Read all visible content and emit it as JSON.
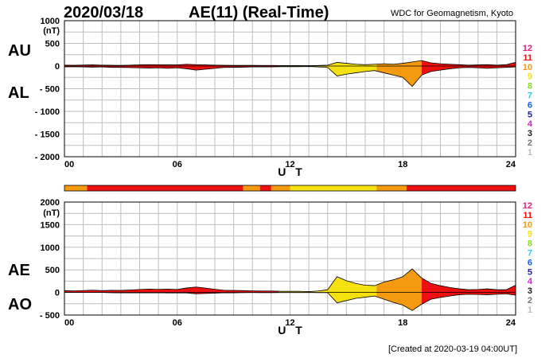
{
  "header": {
    "date": "2020/03/18",
    "title": "AE(11) (Real-Time)",
    "organization": "WDC for Geomagnetism, Kyoto"
  },
  "footer": {
    "created": "[Created at 2020-03-19 04:00UT]"
  },
  "station_legend": {
    "items": [
      {
        "label": "12",
        "color": "#e0207a"
      },
      {
        "label": "11",
        "color": "#ee1010"
      },
      {
        "label": "10",
        "color": "#f39a10"
      },
      {
        "label": "9",
        "color": "#f5e010"
      },
      {
        "label": "8",
        "color": "#88dd22"
      },
      {
        "label": "7",
        "color": "#22ccee"
      },
      {
        "label": "6",
        "color": "#1060ee"
      },
      {
        "label": "5",
        "color": "#2020a0"
      },
      {
        "label": "4",
        "color": "#cc22cc"
      },
      {
        "label": "3",
        "color": "#222222"
      },
      {
        "label": "2",
        "color": "#777777"
      },
      {
        "label": "1",
        "color": "#bbbbbb"
      }
    ]
  },
  "chart_data": [
    {
      "type": "area",
      "upper_label": "AU",
      "lower_label": "AL",
      "unit": "(nT)",
      "ylim": [
        -2000,
        1000
      ],
      "yticks": [
        1000,
        500,
        0,
        -500,
        -1000,
        -1500,
        -2000
      ],
      "ytick_labels": [
        "1000",
        "500",
        "0",
        "- 500",
        "- 1000",
        "- 1500",
        "- 2000"
      ],
      "xlim": [
        0,
        24
      ],
      "xticks": [
        0,
        6,
        12,
        18,
        24
      ],
      "xtick_labels": [
        "00",
        "06",
        "12",
        "18",
        "24"
      ],
      "xlabel": "U T",
      "grid": true,
      "x": [
        0,
        0.5,
        1,
        1.5,
        2,
        2.5,
        3,
        3.5,
        4,
        4.5,
        5,
        5.5,
        6,
        6.5,
        7,
        7.5,
        8,
        8.5,
        9,
        9.5,
        10,
        10.5,
        11,
        11.5,
        12,
        12.5,
        13,
        13.5,
        14,
        14.5,
        15,
        15.5,
        16,
        16.5,
        17,
        17.5,
        18,
        18.5,
        19,
        19.5,
        20,
        20.5,
        21,
        21.5,
        22,
        22.5,
        23,
        23.5,
        24
      ],
      "series": [
        {
          "name": "AU",
          "values": [
            20,
            18,
            22,
            25,
            20,
            18,
            15,
            20,
            25,
            30,
            28,
            25,
            25,
            40,
            30,
            25,
            20,
            18,
            15,
            15,
            15,
            12,
            12,
            10,
            10,
            10,
            8,
            12,
            20,
            80,
            60,
            40,
            30,
            40,
            50,
            40,
            60,
            90,
            120,
            70,
            50,
            40,
            30,
            20,
            25,
            30,
            20,
            30,
            80
          ]
        },
        {
          "name": "AL",
          "values": [
            -20,
            -15,
            -20,
            -25,
            -20,
            -30,
            -30,
            -35,
            -40,
            -45,
            -40,
            -50,
            -40,
            -60,
            -90,
            -70,
            -50,
            -30,
            -30,
            -25,
            -20,
            -20,
            -20,
            -15,
            -15,
            -15,
            -10,
            -20,
            -30,
            -220,
            -180,
            -150,
            -120,
            -100,
            -150,
            -200,
            -250,
            -450,
            -200,
            -120,
            -90,
            -60,
            -40,
            -30,
            -40,
            -50,
            -40,
            -30,
            -20
          ]
        }
      ]
    },
    {
      "type": "area",
      "upper_label": "AE",
      "lower_label": "AO",
      "unit": "(nT)",
      "ylim": [
        -500,
        2000
      ],
      "yticks": [
        2000,
        1500,
        1000,
        500,
        0,
        -500
      ],
      "ytick_labels": [
        "2000",
        "1500",
        "1000",
        "500",
        "0",
        "- 500"
      ],
      "xlim": [
        0,
        24
      ],
      "xticks": [
        0,
        6,
        12,
        18,
        24
      ],
      "xtick_labels": [
        "00",
        "06",
        "12",
        "18",
        "24"
      ],
      "xlabel": "U T",
      "grid": true,
      "x": [
        0,
        0.5,
        1,
        1.5,
        2,
        2.5,
        3,
        3.5,
        4,
        4.5,
        5,
        5.5,
        6,
        6.5,
        7,
        7.5,
        8,
        8.5,
        9,
        9.5,
        10,
        10.5,
        11,
        11.5,
        12,
        12.5,
        13,
        13.5,
        14,
        14.5,
        15,
        15.5,
        16,
        16.5,
        17,
        17.5,
        18,
        18.5,
        19,
        19.5,
        20,
        20.5,
        21,
        21.5,
        22,
        22.5,
        23,
        23.5,
        24
      ],
      "series": [
        {
          "name": "AE",
          "values": [
            40,
            35,
            42,
            50,
            40,
            48,
            45,
            55,
            65,
            75,
            68,
            75,
            65,
            100,
            120,
            95,
            70,
            48,
            45,
            40,
            35,
            32,
            32,
            25,
            25,
            25,
            18,
            32,
            60,
            350,
            260,
            200,
            160,
            150,
            230,
            280,
            350,
            520,
            320,
            200,
            150,
            110,
            80,
            60,
            65,
            80,
            60,
            60,
            160
          ]
        },
        {
          "name": "AO",
          "values": [
            0,
            2,
            0,
            0,
            0,
            -6,
            -8,
            -8,
            -8,
            -8,
            -6,
            -12,
            -8,
            -10,
            -30,
            -22,
            -15,
            -6,
            -8,
            -5,
            -3,
            -4,
            -4,
            -3,
            -3,
            -3,
            -1,
            -4,
            -5,
            -230,
            -180,
            -130,
            -105,
            -80,
            -150,
            -220,
            -280,
            -400,
            -260,
            -150,
            -110,
            -80,
            -50,
            -40,
            -45,
            -50,
            -40,
            -30,
            -60
          ]
        }
      ]
    }
  ],
  "color_bar": {
    "segments": [
      {
        "from": 0,
        "to": 1.2,
        "level": 10
      },
      {
        "from": 1.2,
        "to": 9.5,
        "level": 11
      },
      {
        "from": 9.5,
        "to": 10.4,
        "level": 10
      },
      {
        "from": 10.4,
        "to": 11.0,
        "level": 11
      },
      {
        "from": 11.0,
        "to": 12.0,
        "level": 10
      },
      {
        "from": 12.0,
        "to": 16.6,
        "level": 9
      },
      {
        "from": 16.6,
        "to": 18.2,
        "level": 10
      },
      {
        "from": 18.2,
        "to": 24.0,
        "level": 11
      }
    ]
  },
  "fill_segments": [
    {
      "from": 0,
      "to": 11.4,
      "level": 11
    },
    {
      "from": 11.4,
      "to": 16.6,
      "level": 9
    },
    {
      "from": 16.6,
      "to": 19.0,
      "level": 10
    },
    {
      "from": 19.0,
      "to": 24.0,
      "level": 11
    }
  ]
}
